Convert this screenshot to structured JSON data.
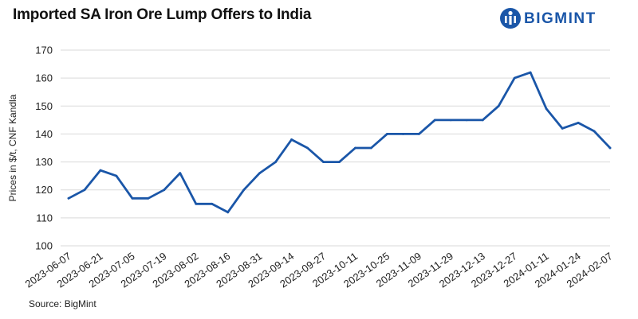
{
  "header": {
    "title": "Imported SA Iron Ore Lump Offers to India",
    "brand": "BIGMINT"
  },
  "footer": {
    "source": "Source: BigMint"
  },
  "colors": {
    "line": "#1a56a8",
    "brand": "#1a56a8",
    "grid": "#d9d9d9"
  },
  "chart_data": {
    "type": "line",
    "title": "Imported SA Iron Ore Lump Offers to India",
    "xlabel": "",
    "ylabel": "Prices in $/t, CNF Kandla",
    "ylim": [
      100,
      170
    ],
    "yticks": [
      100,
      110,
      120,
      130,
      140,
      150,
      160,
      170
    ],
    "xtick_labels": [
      "2023-06-07",
      "2023-06-21",
      "2023-07-05",
      "2023-07-19",
      "2023-08-02",
      "2023-08-16",
      "2023-08-31",
      "2023-09-14",
      "2023-09-27",
      "2023-10-11",
      "2023-10-25",
      "2023-11-09",
      "2023-11-29",
      "2023-12-13",
      "2023-12-27",
      "2024-01-11",
      "2024-01-24",
      "2024-02-07"
    ],
    "grid": true,
    "legend": "none",
    "series": [
      {
        "name": "SA Iron Ore Lump CNF Kandla",
        "values": [
          117,
          120,
          127,
          125,
          117,
          117,
          120,
          126,
          115,
          115,
          112,
          120,
          126,
          130,
          138,
          135,
          130,
          130,
          135,
          135,
          140,
          140,
          140,
          145,
          145,
          145,
          145,
          150,
          160,
          162,
          149,
          142,
          144,
          141,
          135
        ]
      }
    ]
  }
}
